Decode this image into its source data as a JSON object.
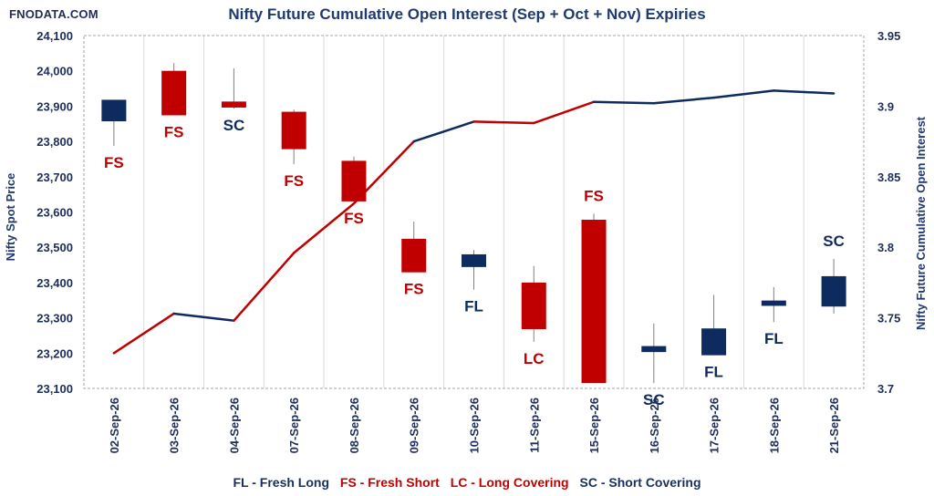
{
  "brand": "FNODATA.COM",
  "legend": {
    "fl": "FL - Fresh Long",
    "fs": "FS - Fresh Short",
    "lc": "LC - Long Covering",
    "sc": "SC - Short Covering"
  },
  "colors": {
    "up": "#0d2b5e",
    "down": "#c00000",
    "grid": "#d9d9d9"
  },
  "chart_data": {
    "type": "candlestick+line",
    "title": "Nifty Future Cumulative Open Interest (Sep + Oct + Nov) Expiries",
    "ylabel": "Nifty Spot Price",
    "y2label": "Nifty Future Cumulative Open Interest",
    "ylim": [
      23100,
      24100
    ],
    "y2lim": [
      3.7,
      3.95
    ],
    "yticks": [
      "23,100",
      "23,200",
      "23,300",
      "23,400",
      "23,500",
      "23,600",
      "23,700",
      "23,800",
      "23,900",
      "24,000",
      "24,100"
    ],
    "y2ticks": [
      "3.7",
      "3.75",
      "3.8",
      "3.85",
      "3.9",
      "3.95"
    ],
    "categories": [
      "02-Sep-26",
      "03-Sep-26",
      "04-Sep-26",
      "07-Sep-26",
      "08-Sep-26",
      "09-Sep-26",
      "10-Sep-26",
      "11-Sep-26",
      "15-Sep-26",
      "16-Sep-26",
      "17-Sep-26",
      "18-Sep-26",
      "21-Sep-26"
    ],
    "candles": [
      {
        "open": 23857,
        "high": 23918,
        "low": 23787,
        "close": 23918
      },
      {
        "open": 24000,
        "high": 24022,
        "low": 23874,
        "close": 23874
      },
      {
        "open": 23913,
        "high": 24007,
        "low": 23893,
        "close": 23896
      },
      {
        "open": 23884,
        "high": 23890,
        "low": 23736,
        "close": 23778
      },
      {
        "open": 23745,
        "high": 23757,
        "low": 23630,
        "close": 23630
      },
      {
        "open": 23524,
        "high": 23573,
        "low": 23429,
        "close": 23429
      },
      {
        "open": 23444,
        "high": 23492,
        "low": 23380,
        "close": 23480
      },
      {
        "open": 23400,
        "high": 23447,
        "low": 23232,
        "close": 23268
      },
      {
        "open": 23578,
        "high": 23595,
        "low": 23115,
        "close": 23115
      },
      {
        "open": 23203,
        "high": 23284,
        "low": 23115,
        "close": 23220
      },
      {
        "open": 23194,
        "high": 23365,
        "low": 23194,
        "close": 23270
      },
      {
        "open": 23334,
        "high": 23387,
        "low": 23288,
        "close": 23349
      },
      {
        "open": 23332,
        "high": 23467,
        "low": 23312,
        "close": 23418
      }
    ],
    "oi": [
      3.725,
      3.753,
      3.748,
      3.796,
      3.831,
      3.875,
      3.889,
      3.888,
      3.903,
      3.902,
      3.906,
      3.911,
      3.909
    ],
    "signals": [
      "FS",
      "FS",
      "SC",
      "FS",
      "FS",
      "FS",
      "FL",
      "LC",
      "FS",
      "SC",
      "FL",
      "FL",
      "SC"
    ]
  }
}
